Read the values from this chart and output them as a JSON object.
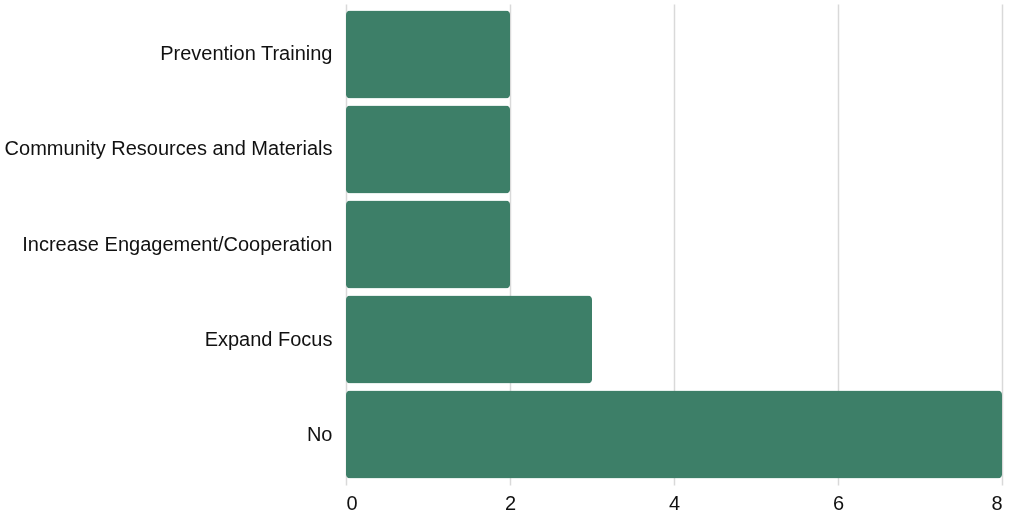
{
  "chart_data": {
    "type": "bar",
    "orientation": "horizontal",
    "categories": [
      "Prevention Training",
      "Community Resources and Materials",
      "Increase Engagement/Cooperation",
      "Expand Focus",
      "No"
    ],
    "values": [
      2,
      2,
      2,
      3,
      8
    ],
    "color": "#3d7f68",
    "xlim": [
      0,
      8
    ],
    "xticks": [
      0,
      2,
      4,
      6,
      8
    ],
    "grid": "x"
  }
}
